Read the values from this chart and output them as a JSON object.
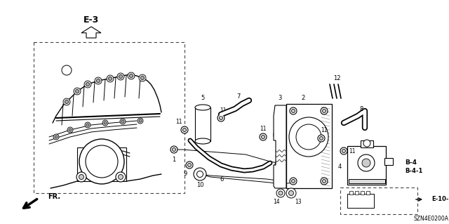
{
  "part_code": "SZN4E0200A",
  "bg": "#ffffff",
  "fig_w": 6.4,
  "fig_h": 3.19,
  "dpi": 100,
  "e3_label": "E-3",
  "fr_label": "FR.",
  "b4_label": "B-4",
  "b41_label": "B-4-1",
  "e101_label": "E-10-1"
}
